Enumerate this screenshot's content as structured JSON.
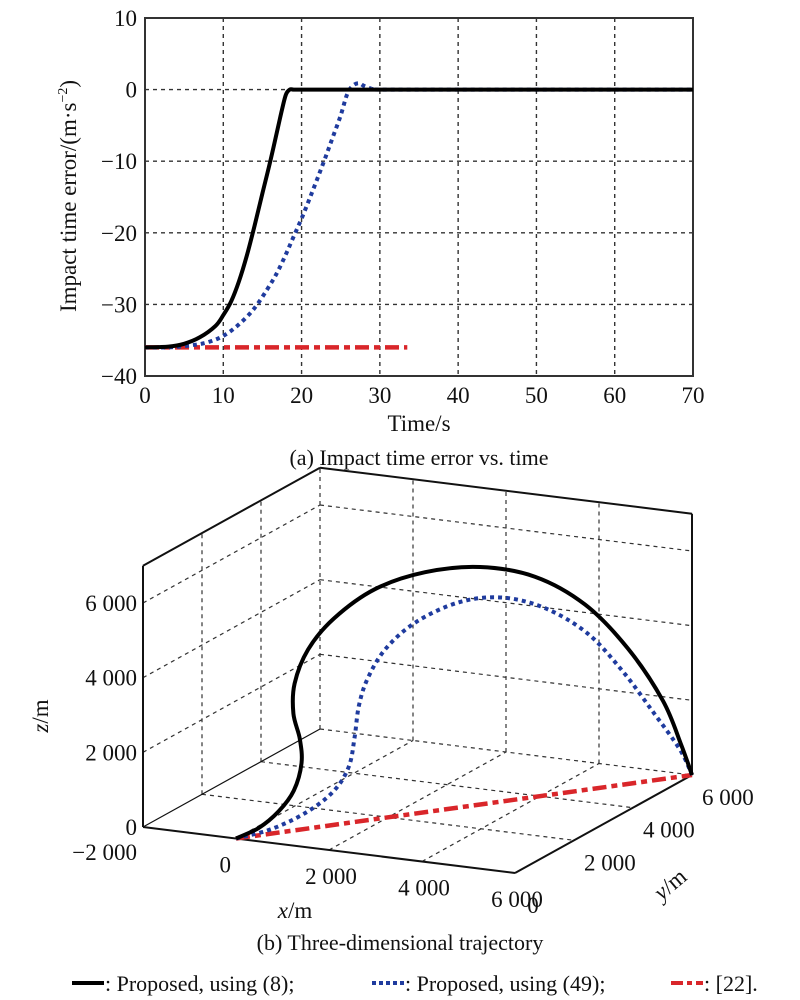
{
  "chart_data": [
    {
      "type": "line",
      "title": "(a) Impact time error vs. time",
      "xlabel": "Time/s",
      "ylabel": "Impact time error/(m·s",
      "ylabel_sup": "−2",
      "ylabel_close": ")",
      "xlim": [
        0,
        70
      ],
      "ylim": [
        -40,
        10
      ],
      "grid": true,
      "xticks": [
        0,
        10,
        20,
        30,
        40,
        50,
        60,
        70
      ],
      "xtick_labels": [
        "0",
        "10",
        "20",
        "30",
        "40",
        "50",
        "60",
        "70"
      ],
      "yticks": [
        10,
        0,
        -10,
        -20,
        -30,
        -40
      ],
      "ytick_labels": [
        "10",
        "0",
        "−10",
        "−20",
        "−30",
        "−40"
      ],
      "series": [
        {
          "name": "Proposed, using (8)",
          "style": "solid",
          "color": "#000000",
          "x": [
            0,
            3,
            5,
            7,
            9,
            10,
            11,
            12,
            13,
            14,
            15,
            16,
            17,
            17.5,
            18,
            18.5,
            19,
            20,
            30,
            40,
            50,
            60,
            70
          ],
          "y": [
            -36,
            -35.9,
            -35.5,
            -34.6,
            -33,
            -31.5,
            -29.6,
            -26.8,
            -23.2,
            -19,
            -14.5,
            -10,
            -5.2,
            -2.8,
            -0.7,
            0,
            0,
            0,
            0,
            0,
            0,
            0,
            0
          ]
        },
        {
          "name": "Proposed, using (49)",
          "style": "dotted",
          "color": "#1f3b9e",
          "x": [
            0,
            3,
            6,
            8,
            10,
            12,
            14,
            16,
            17,
            18,
            19,
            20,
            21,
            22,
            23,
            24,
            25,
            25.8,
            26.5,
            27.3,
            28,
            29,
            30,
            40,
            50,
            60,
            70
          ],
          "y": [
            -36,
            -36,
            -35.7,
            -35.3,
            -34.4,
            -32.8,
            -30.5,
            -27.2,
            -25.3,
            -23,
            -20.5,
            -18,
            -15.3,
            -12.5,
            -9.6,
            -6.6,
            -3.6,
            -0.7,
            0.5,
            0.9,
            0.5,
            0.1,
            0,
            0,
            0,
            0,
            0
          ]
        },
        {
          "name": "[22]",
          "style": "dashdot",
          "color": "#d9262a",
          "x": [
            0,
            33.5
          ],
          "y": [
            -36,
            -36
          ]
        }
      ]
    },
    {
      "type": "line3d",
      "title": "(b) Three-dimensional trajectory",
      "xlabel": "x",
      "ylabel": "y",
      "zlabel": "z",
      "unit": "/m",
      "xlim": [
        -2000,
        6000
      ],
      "ylim": [
        0,
        6000
      ],
      "zlim": [
        0,
        7000
      ],
      "grid": true,
      "xticks": [
        0,
        2000,
        4000,
        6000
      ],
      "xtick_labels": [
        "0",
        "2 000",
        "4 000",
        "6 000"
      ],
      "x_start_label": "−2 000",
      "yticks": [
        0,
        2000,
        4000,
        6000
      ],
      "ytick_labels": [
        "0",
        "2 000",
        "4 000",
        "6 000"
      ],
      "zticks": [
        0,
        2000,
        4000,
        6000
      ],
      "ztick_labels": [
        "0",
        "2 000",
        "4 000",
        "6 000"
      ],
      "series": [
        {
          "name": "Proposed, using (8)",
          "style": "solid",
          "color": "#000000",
          "points": [
            [
              0,
              0,
              0
            ],
            [
              300,
              300,
              200
            ],
            [
              600,
              500,
              600
            ],
            [
              800,
              700,
              1100
            ],
            [
              900,
              800,
              1800
            ],
            [
              800,
              900,
              2400
            ],
            [
              600,
              1000,
              3000
            ],
            [
              500,
              1200,
              3700
            ],
            [
              600,
              1500,
              4500
            ],
            [
              900,
              1900,
              5200
            ],
            [
              1400,
              2500,
              5800
            ],
            [
              2100,
              3100,
              6100
            ],
            [
              2900,
              3700,
              6100
            ],
            [
              3700,
              4300,
              5700
            ],
            [
              4400,
              4900,
              4800
            ],
            [
              5000,
              5400,
              3500
            ],
            [
              5500,
              5800,
              2000
            ],
            [
              5800,
              5950,
              800
            ],
            [
              6000,
              6000,
              0
            ]
          ]
        },
        {
          "name": "Proposed, using (49)",
          "style": "dotted",
          "color": "#1f3b9e",
          "points": [
            [
              0,
              0,
              0
            ],
            [
              500,
              400,
              150
            ],
            [
              1000,
              800,
              500
            ],
            [
              1400,
              1100,
              1000
            ],
            [
              1600,
              1300,
              1600
            ],
            [
              1600,
              1500,
              2300
            ],
            [
              1500,
              1800,
              3000
            ],
            [
              1500,
              2100,
              3600
            ],
            [
              1700,
              2400,
              4300
            ],
            [
              2100,
              2800,
              4900
            ],
            [
              2700,
              3300,
              5300
            ],
            [
              3300,
              3800,
              5300
            ],
            [
              3900,
              4300,
              4900
            ],
            [
              4500,
              4800,
              4100
            ],
            [
              5000,
              5200,
              3000
            ],
            [
              5400,
              5600,
              1800
            ],
            [
              5800,
              5900,
              700
            ],
            [
              6000,
              6000,
              0
            ]
          ]
        },
        {
          "name": "[22]",
          "style": "dashdot",
          "color": "#d9262a",
          "points": [
            [
              0,
              0,
              0
            ],
            [
              6000,
              6000,
              0
            ]
          ]
        }
      ]
    }
  ],
  "legend": {
    "items": [
      {
        "label": ": Proposed, using (8);",
        "style": "solid",
        "color": "#000000"
      },
      {
        "label": ": Proposed, using (49);",
        "style": "dotted",
        "color": "#1f3b9e"
      },
      {
        "label": ": [22].",
        "style": "dashdot",
        "color": "#d9262a"
      }
    ]
  }
}
